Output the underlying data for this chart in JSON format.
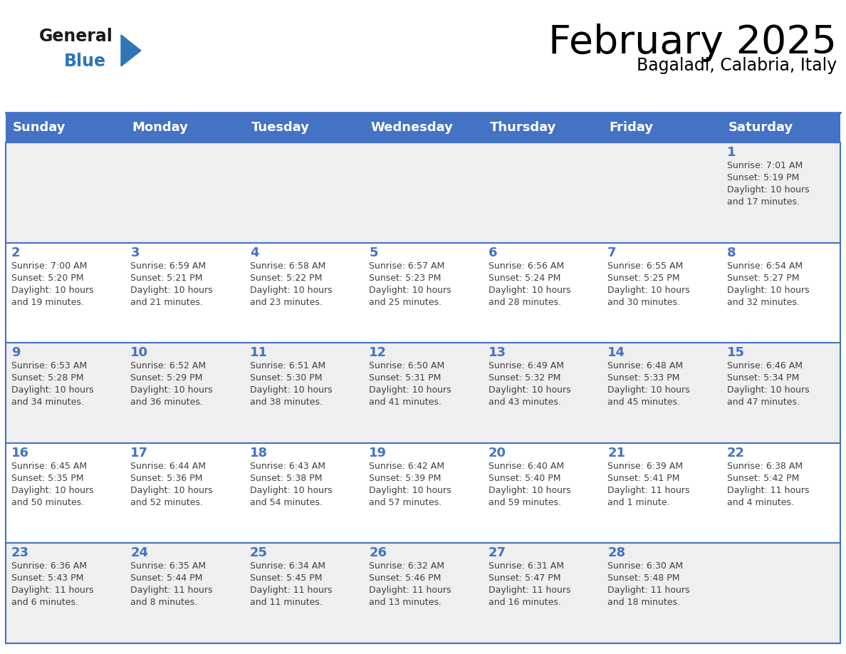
{
  "title": "February 2025",
  "subtitle": "Bagaladi, Calabria, Italy",
  "days_of_week": [
    "Sunday",
    "Monday",
    "Tuesday",
    "Wednesday",
    "Thursday",
    "Friday",
    "Saturday"
  ],
  "header_bg": "#4472C4",
  "header_text": "#FFFFFF",
  "cell_bg_even": "#EFEFEF",
  "cell_bg_odd": "#FFFFFF",
  "cell_border": "#4472C4",
  "day_number_color": "#4472C4",
  "text_color": "#404040",
  "logo_general_color": "#1a1a1a",
  "logo_blue_color": "#2E75B6",
  "fig_width": 11.88,
  "fig_height": 9.18,
  "calendar_data": [
    [
      {
        "day": null,
        "sunrise": null,
        "sunset": null,
        "daylight": null
      },
      {
        "day": null,
        "sunrise": null,
        "sunset": null,
        "daylight": null
      },
      {
        "day": null,
        "sunrise": null,
        "sunset": null,
        "daylight": null
      },
      {
        "day": null,
        "sunrise": null,
        "sunset": null,
        "daylight": null
      },
      {
        "day": null,
        "sunrise": null,
        "sunset": null,
        "daylight": null
      },
      {
        "day": null,
        "sunrise": null,
        "sunset": null,
        "daylight": null
      },
      {
        "day": 1,
        "sunrise": "7:01 AM",
        "sunset": "5:19 PM",
        "daylight": "10 hours\nand 17 minutes."
      }
    ],
    [
      {
        "day": 2,
        "sunrise": "7:00 AM",
        "sunset": "5:20 PM",
        "daylight": "10 hours\nand 19 minutes."
      },
      {
        "day": 3,
        "sunrise": "6:59 AM",
        "sunset": "5:21 PM",
        "daylight": "10 hours\nand 21 minutes."
      },
      {
        "day": 4,
        "sunrise": "6:58 AM",
        "sunset": "5:22 PM",
        "daylight": "10 hours\nand 23 minutes."
      },
      {
        "day": 5,
        "sunrise": "6:57 AM",
        "sunset": "5:23 PM",
        "daylight": "10 hours\nand 25 minutes."
      },
      {
        "day": 6,
        "sunrise": "6:56 AM",
        "sunset": "5:24 PM",
        "daylight": "10 hours\nand 28 minutes."
      },
      {
        "day": 7,
        "sunrise": "6:55 AM",
        "sunset": "5:25 PM",
        "daylight": "10 hours\nand 30 minutes."
      },
      {
        "day": 8,
        "sunrise": "6:54 AM",
        "sunset": "5:27 PM",
        "daylight": "10 hours\nand 32 minutes."
      }
    ],
    [
      {
        "day": 9,
        "sunrise": "6:53 AM",
        "sunset": "5:28 PM",
        "daylight": "10 hours\nand 34 minutes."
      },
      {
        "day": 10,
        "sunrise": "6:52 AM",
        "sunset": "5:29 PM",
        "daylight": "10 hours\nand 36 minutes."
      },
      {
        "day": 11,
        "sunrise": "6:51 AM",
        "sunset": "5:30 PM",
        "daylight": "10 hours\nand 38 minutes."
      },
      {
        "day": 12,
        "sunrise": "6:50 AM",
        "sunset": "5:31 PM",
        "daylight": "10 hours\nand 41 minutes."
      },
      {
        "day": 13,
        "sunrise": "6:49 AM",
        "sunset": "5:32 PM",
        "daylight": "10 hours\nand 43 minutes."
      },
      {
        "day": 14,
        "sunrise": "6:48 AM",
        "sunset": "5:33 PM",
        "daylight": "10 hours\nand 45 minutes."
      },
      {
        "day": 15,
        "sunrise": "6:46 AM",
        "sunset": "5:34 PM",
        "daylight": "10 hours\nand 47 minutes."
      }
    ],
    [
      {
        "day": 16,
        "sunrise": "6:45 AM",
        "sunset": "5:35 PM",
        "daylight": "10 hours\nand 50 minutes."
      },
      {
        "day": 17,
        "sunrise": "6:44 AM",
        "sunset": "5:36 PM",
        "daylight": "10 hours\nand 52 minutes."
      },
      {
        "day": 18,
        "sunrise": "6:43 AM",
        "sunset": "5:38 PM",
        "daylight": "10 hours\nand 54 minutes."
      },
      {
        "day": 19,
        "sunrise": "6:42 AM",
        "sunset": "5:39 PM",
        "daylight": "10 hours\nand 57 minutes."
      },
      {
        "day": 20,
        "sunrise": "6:40 AM",
        "sunset": "5:40 PM",
        "daylight": "10 hours\nand 59 minutes."
      },
      {
        "day": 21,
        "sunrise": "6:39 AM",
        "sunset": "5:41 PM",
        "daylight": "11 hours\nand 1 minute."
      },
      {
        "day": 22,
        "sunrise": "6:38 AM",
        "sunset": "5:42 PM",
        "daylight": "11 hours\nand 4 minutes."
      }
    ],
    [
      {
        "day": 23,
        "sunrise": "6:36 AM",
        "sunset": "5:43 PM",
        "daylight": "11 hours\nand 6 minutes."
      },
      {
        "day": 24,
        "sunrise": "6:35 AM",
        "sunset": "5:44 PM",
        "daylight": "11 hours\nand 8 minutes."
      },
      {
        "day": 25,
        "sunrise": "6:34 AM",
        "sunset": "5:45 PM",
        "daylight": "11 hours\nand 11 minutes."
      },
      {
        "day": 26,
        "sunrise": "6:32 AM",
        "sunset": "5:46 PM",
        "daylight": "11 hours\nand 13 minutes."
      },
      {
        "day": 27,
        "sunrise": "6:31 AM",
        "sunset": "5:47 PM",
        "daylight": "11 hours\nand 16 minutes."
      },
      {
        "day": 28,
        "sunrise": "6:30 AM",
        "sunset": "5:48 PM",
        "daylight": "11 hours\nand 18 minutes."
      },
      {
        "day": null,
        "sunrise": null,
        "sunset": null,
        "daylight": null
      }
    ]
  ]
}
